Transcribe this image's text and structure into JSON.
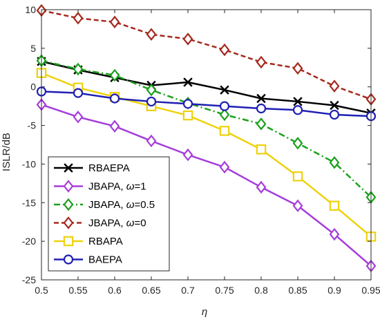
{
  "chart_data": {
    "type": "line",
    "xlabel": "η",
    "ylabel": "ISLR/dB",
    "xlim": [
      0.5,
      0.95
    ],
    "ylim": [
      -25,
      10
    ],
    "x": [
      0.5,
      0.55,
      0.6,
      0.65,
      0.7,
      0.75,
      0.8,
      0.85,
      0.9,
      0.95
    ],
    "x_tick_labels": [
      "0.5",
      "0.55",
      "0.6",
      "0.65",
      "0.7",
      "0.75",
      "0.8",
      "0.85",
      "0.9",
      "0.95"
    ],
    "y_ticks": [
      -25,
      -20,
      -15,
      -10,
      -5,
      0,
      5,
      10
    ],
    "y_tick_labels": [
      "-25",
      "-20",
      "-15",
      "-10",
      "-5",
      "0",
      "5",
      "10"
    ],
    "grid": false,
    "legend_position": "bottom-left",
    "series": [
      {
        "name": "RBAEPA",
        "label_main": "RBAEPA",
        "omega_value": "",
        "color": "#000000",
        "marker": "x",
        "dash": "solid",
        "values": [
          3.3,
          2.2,
          1.2,
          0.2,
          0.6,
          -0.4,
          -1.5,
          -1.9,
          -2.4,
          -3.4
        ]
      },
      {
        "name": "JBAPA, ω=1",
        "label_main": "JBAPA, ",
        "omega_value": "=1",
        "color": "#a53ddb",
        "marker": "diamond",
        "dash": "solid",
        "values": [
          -2.3,
          -3.9,
          -5.1,
          -7.0,
          -8.8,
          -10.4,
          -13.0,
          -15.4,
          -19.1,
          -23.2
        ]
      },
      {
        "name": "JBAPA, ω=0.5",
        "label_main": "JBAPA, ",
        "omega_value": "=0.5",
        "color": "#1ba01b",
        "marker": "diamond",
        "dash": "dashdot",
        "values": [
          3.4,
          2.3,
          1.5,
          -0.4,
          -2.1,
          -3.6,
          -4.8,
          -7.3,
          -9.8,
          -14.3
        ]
      },
      {
        "name": "JBAPA, ω=0",
        "label_main": "JBAPA, ",
        "omega_value": "=0",
        "color": "#a5281d",
        "marker": "diamond",
        "dash": "dashed",
        "values": [
          9.9,
          8.9,
          8.4,
          6.8,
          6.2,
          4.8,
          3.2,
          2.4,
          0.1,
          -1.6
        ]
      },
      {
        "name": "RBAPA",
        "label_main": "RBAPA",
        "omega_value": "",
        "color": "#eed20c",
        "marker": "square",
        "dash": "solid",
        "values": [
          1.8,
          -0.1,
          -1.3,
          -2.5,
          -3.7,
          -5.7,
          -8.1,
          -11.6,
          -15.4,
          -19.4
        ]
      },
      {
        "name": "BAEPA",
        "label_main": "BAEPA",
        "omega_value": "",
        "color": "#1f1fb4",
        "marker": "circle",
        "dash": "solid",
        "values": [
          -0.6,
          -0.8,
          -1.5,
          -1.9,
          -2.2,
          -2.5,
          -2.8,
          -3.0,
          -3.6,
          -3.8
        ]
      }
    ]
  }
}
